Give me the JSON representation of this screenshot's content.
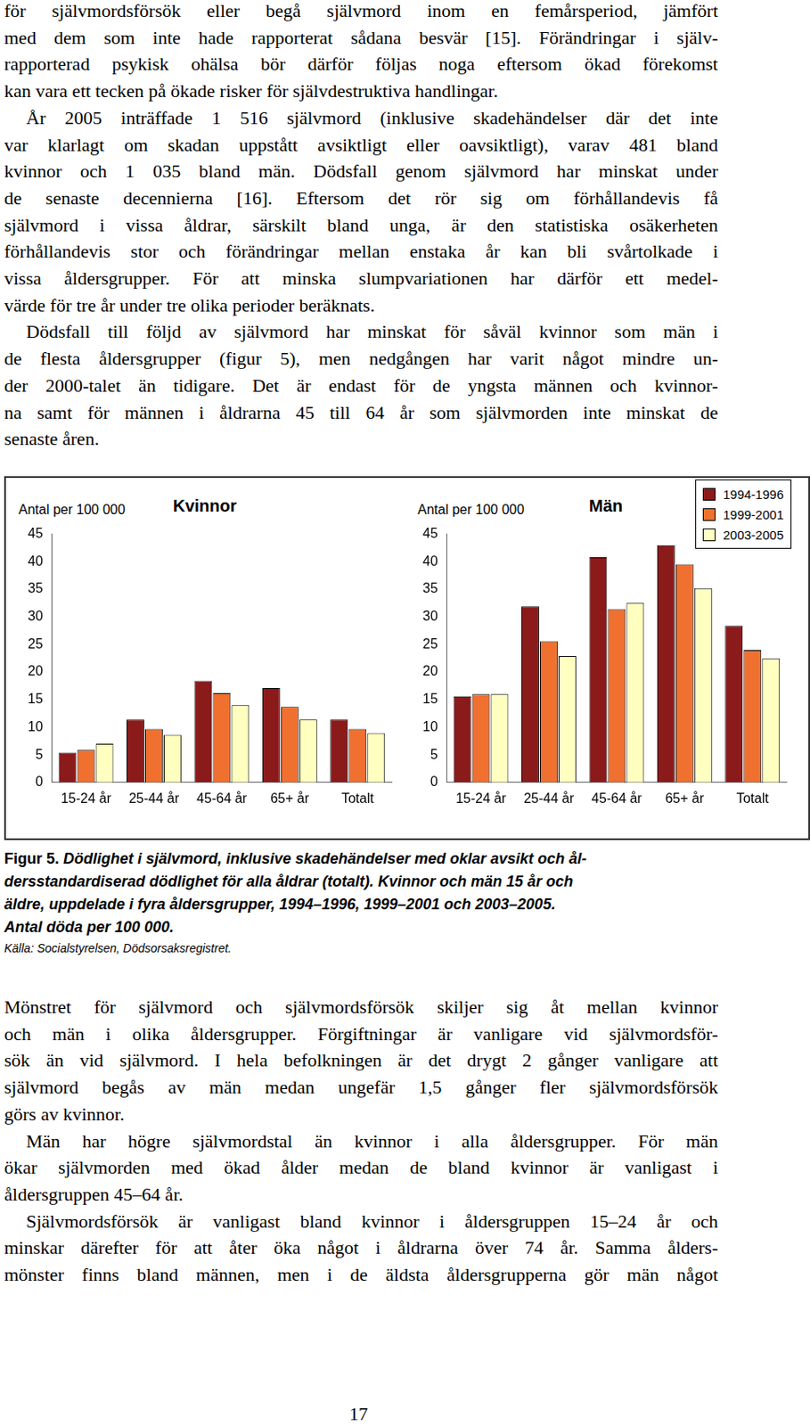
{
  "document": {
    "text_top": [
      [
        "för självmordsförsök eller begå självmord inom en femårsperiod, jämfört",
        "med dem som inte hade rapporterat sådana besvär [15]. Förändringar i själv-",
        "rapporterad psykisk ohälsa bör därför följas noga eftersom ökad förekomst",
        "kan vara ett tecken på ökade risker för självdestruktiva handlingar."
      ],
      [
        "År 2005 inträffade 1 516 självmord (inklusive skadehändelser där det inte",
        "var klarlagt om skadan uppstått avsiktligt eller oavsiktligt), varav 481 bland",
        "kvinnor och 1 035 bland män. Dödsfall genom självmord har minskat under",
        "de senaste decennierna [16]. Eftersom det rör sig om förhållandevis få",
        "självmord i vissa åldrar, särskilt bland unga, är den statistiska osäkerheten",
        "förhållandevis stor och förändringar mellan enstaka år kan bli svårtolkade i",
        "vissa åldersgrupper. För att minska slumpvariationen har därför ett medel-",
        "värde för tre år under tre olika perioder beräknats."
      ],
      [
        "Dödsfall till följd av självmord har minskat för såväl kvinnor som män i",
        "de flesta åldersgrupper (figur 5), men nedgången har varit något mindre un-",
        "der 2000-talet än tidigare. Det är endast för de yngsta männen och kvinnor-",
        "na samt för männen i åldrarna 45 till 64 år som självmorden inte minskat de",
        "senaste åren."
      ]
    ],
    "caption": {
      "label": "Figur 5.",
      "lines": [
        "Dödlighet i självmord, inklusive skadehändelser med oklar avsikt och ål-",
        "dersstandardiserad dödlighet för alla åldrar (totalt). Kvinnor och män 15 år och",
        "äldre, uppdelade i fyra åldersgrupper, 1994–1996, 1999–2001 och 2003–2005.",
        "Antal döda per 100 000."
      ],
      "source": "Källa: Socialstyrelsen, Dödsorsaksregistret."
    },
    "text_bottom": [
      [
        "Mönstret för självmord och självmordsförsök skiljer sig åt mellan kvinnor",
        "och män i olika åldersgrupper. Förgiftningar är vanligare vid självmordsför-",
        "sök än vid självmord. I hela befolkningen är det drygt 2 gånger vanligare att",
        "självmord begås av män medan ungefär 1,5 gånger fler självmordsförsök",
        "görs av kvinnor."
      ],
      [
        "Män har högre självmordstal än kvinnor i alla åldersgrupper. För män",
        "ökar självmorden med ökad ålder medan de bland kvinnor är vanligast i",
        "åldersgruppen 45–64 år."
      ],
      [
        "Självmordsförsök är vanligast bland kvinnor i åldersgruppen 15–24 år och",
        "minskar därefter för att åter öka något i åldrarna över 74 år. Samma ålders-",
        "mönster finns bland männen, men i de äldsta åldersgrupperna gör män något"
      ]
    ],
    "page_number": 17
  },
  "chart_data": [
    {
      "type": "bar",
      "title": "Kvinnor",
      "y_label": "Antal per 100 000",
      "categories": [
        "15-24 år",
        "25-44 år",
        "45-64 år",
        "65+ år",
        "Totalt"
      ],
      "series": [
        {
          "name": "1994-1996",
          "color": "#8b1a1a",
          "values": [
            5.4,
            11.4,
            18.4,
            17.1,
            11.4
          ]
        },
        {
          "name": "1999-2001",
          "color": "#f07030",
          "values": [
            5.9,
            9.7,
            16.2,
            13.7,
            9.7
          ]
        },
        {
          "name": "2003-2005",
          "color": "#ffffc0",
          "values": [
            7.0,
            8.6,
            14.0,
            11.4,
            8.9
          ]
        }
      ],
      "ylim": [
        0,
        45
      ],
      "yticks": [
        0,
        5,
        10,
        15,
        20,
        25,
        30,
        35,
        40,
        45
      ],
      "grid": false
    },
    {
      "type": "bar",
      "title": "Män",
      "y_label": "Antal per 100 000",
      "categories": [
        "15-24 år",
        "25-44 år",
        "45-64 år",
        "65+ år",
        "Totalt"
      ],
      "series": [
        {
          "name": "1994-1996",
          "color": "#8b1a1a",
          "values": [
            15.6,
            31.9,
            40.8,
            43.0,
            28.4
          ]
        },
        {
          "name": "1999-2001",
          "color": "#f07030",
          "values": [
            16.0,
            25.6,
            31.4,
            39.5,
            24.0
          ]
        },
        {
          "name": "2003-2005",
          "color": "#ffffc0",
          "values": [
            16.0,
            22.9,
            32.5,
            35.2,
            22.5
          ]
        }
      ],
      "ylim": [
        0,
        45
      ],
      "yticks": [
        0,
        5,
        10,
        15,
        20,
        25,
        30,
        35,
        40,
        45
      ],
      "grid": false,
      "legend": "top right"
    }
  ]
}
